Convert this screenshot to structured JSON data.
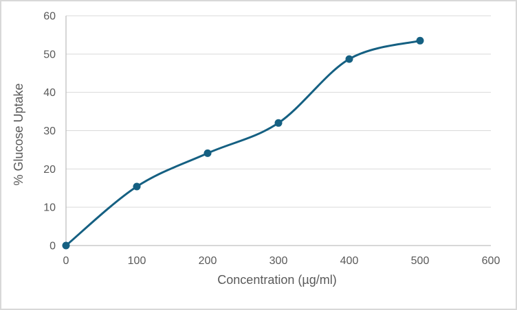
{
  "chart_data": {
    "type": "line",
    "x": [
      0,
      100,
      200,
      300,
      400,
      500
    ],
    "series": [
      {
        "name": "% Glucose Uptake",
        "values": [
          0,
          15.4,
          24.1,
          32,
          48.7,
          53.5
        ]
      }
    ],
    "title": "",
    "xlabel": "Concentration (µg/ml)",
    "ylabel": "% Glucose Uptake",
    "xlim": [
      0,
      600
    ],
    "ylim": [
      0,
      60
    ],
    "x_ticks": [
      0,
      100,
      200,
      300,
      400,
      500,
      600
    ],
    "y_ticks": [
      0,
      10,
      20,
      30,
      40,
      50,
      60
    ],
    "grid": "horizontal",
    "legend": "none",
    "smooth": true,
    "marker": "circle",
    "colors": {
      "line": "#156082",
      "marker": "#156082",
      "gridline": "#d9d9d9",
      "axis_line": "#bfbfbf",
      "text": "#595959",
      "background": "#ffffff",
      "frame_border": "#d8d8d8"
    }
  }
}
